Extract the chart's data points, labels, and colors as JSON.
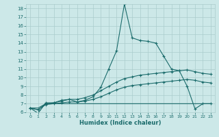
{
  "xlabel": "Humidex (Indice chaleur)",
  "bg_color": "#cce8e8",
  "grid_color": "#aacccc",
  "line_color": "#1a6b6b",
  "xlim": [
    -0.5,
    23.5
  ],
  "ylim": [
    6,
    18.5
  ],
  "xticks": [
    0,
    1,
    2,
    3,
    4,
    5,
    6,
    7,
    8,
    9,
    10,
    11,
    12,
    13,
    14,
    15,
    16,
    17,
    18,
    19,
    20,
    21,
    22,
    23
  ],
  "yticks": [
    6,
    7,
    8,
    9,
    10,
    11,
    12,
    13,
    14,
    15,
    16,
    17,
    18
  ],
  "line1_x": [
    0,
    1,
    2,
    3,
    4,
    5,
    6,
    7,
    8,
    9,
    10,
    11,
    12,
    13,
    14,
    15,
    16,
    17,
    18,
    19,
    20,
    21,
    22,
    23
  ],
  "line1_y": [
    6.5,
    5.9,
    7.1,
    7.1,
    7.4,
    7.5,
    7.2,
    7.4,
    7.8,
    8.9,
    11.0,
    13.1,
    18.5,
    14.6,
    14.3,
    14.2,
    14.0,
    12.5,
    11.0,
    10.8,
    9.0,
    6.4,
    7.0,
    7.0
  ],
  "line2_x": [
    0,
    1,
    2,
    3,
    4,
    5,
    6,
    7,
    8,
    9,
    10,
    11,
    12,
    13,
    14,
    15,
    16,
    17,
    18,
    19,
    20,
    21,
    22,
    23
  ],
  "line2_y": [
    6.5,
    6.3,
    7.0,
    7.1,
    7.3,
    7.5,
    7.5,
    7.7,
    8.0,
    8.5,
    9.0,
    9.5,
    9.9,
    10.1,
    10.3,
    10.4,
    10.5,
    10.6,
    10.7,
    10.8,
    10.9,
    10.7,
    10.5,
    10.4
  ],
  "line3_x": [
    0,
    1,
    2,
    3,
    4,
    5,
    6,
    7,
    8,
    9,
    10,
    11,
    12,
    13,
    14,
    15,
    16,
    17,
    18,
    19,
    20,
    21,
    22,
    23
  ],
  "line3_y": [
    6.5,
    6.3,
    6.9,
    7.0,
    7.1,
    7.2,
    7.2,
    7.3,
    7.5,
    7.8,
    8.2,
    8.6,
    8.9,
    9.1,
    9.2,
    9.3,
    9.4,
    9.5,
    9.6,
    9.7,
    9.8,
    9.7,
    9.5,
    9.4
  ],
  "line4_x": [
    0,
    1,
    2,
    3,
    4,
    5,
    6,
    7,
    8,
    9,
    10,
    11,
    12,
    13,
    14,
    15,
    16,
    17,
    18,
    19,
    20,
    21,
    22,
    23
  ],
  "line4_y": [
    6.5,
    6.5,
    7.0,
    7.0,
    7.0,
    7.0,
    7.0,
    7.0,
    7.0,
    7.0,
    7.0,
    7.0,
    7.0,
    7.0,
    7.0,
    7.0,
    7.0,
    7.0,
    7.0,
    7.0,
    7.0,
    7.0,
    7.0,
    7.0
  ],
  "marker": "+",
  "markersize": 3,
  "linewidth": 0.8
}
